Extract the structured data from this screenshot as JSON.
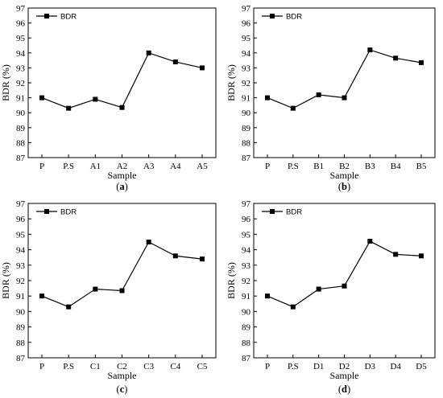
{
  "chart_data": [
    {
      "type": "line",
      "panel_label": "a",
      "categories": [
        "P",
        "P.S",
        "A1",
        "A2",
        "A3",
        "A4",
        "A5"
      ],
      "series": [
        {
          "name": "BDR",
          "values": [
            91.0,
            90.3,
            90.9,
            90.35,
            94.0,
            93.4,
            93.0
          ]
        }
      ],
      "xlabel": "Sample",
      "ylabel": "BDR (%)",
      "ylim": [
        87,
        97
      ],
      "yticks": [
        87,
        88,
        89,
        90,
        91,
        92,
        93,
        94,
        95,
        96,
        97
      ],
      "grid": false,
      "legend_position": "top-left"
    },
    {
      "type": "line",
      "panel_label": "b",
      "categories": [
        "P",
        "P.S",
        "B1",
        "B2",
        "B3",
        "B4",
        "B5"
      ],
      "series": [
        {
          "name": "BDR",
          "values": [
            91.0,
            90.3,
            91.2,
            91.0,
            94.2,
            93.65,
            93.35
          ]
        }
      ],
      "xlabel": "Sample",
      "ylabel": "BDR (%)",
      "ylim": [
        87,
        97
      ],
      "yticks": [
        87,
        88,
        89,
        90,
        91,
        92,
        93,
        94,
        95,
        96,
        97
      ],
      "grid": false,
      "legend_position": "top-left"
    },
    {
      "type": "line",
      "panel_label": "c",
      "categories": [
        "P",
        "P.S",
        "C1",
        "C2",
        "C3",
        "C4",
        "C5"
      ],
      "series": [
        {
          "name": "BDR",
          "values": [
            91.0,
            90.3,
            91.45,
            91.35,
            94.5,
            93.6,
            93.4
          ]
        }
      ],
      "xlabel": "Sample",
      "ylabel": "BDR (%)",
      "ylim": [
        87,
        97
      ],
      "yticks": [
        87,
        88,
        89,
        90,
        91,
        92,
        93,
        94,
        95,
        96,
        97
      ],
      "grid": false,
      "legend_position": "top-left"
    },
    {
      "type": "line",
      "panel_label": "d",
      "categories": [
        "P",
        "P.S",
        "D1",
        "D2",
        "D3",
        "D4",
        "D5"
      ],
      "series": [
        {
          "name": "BDR",
          "values": [
            91.0,
            90.3,
            91.45,
            91.65,
            94.55,
            93.7,
            93.6
          ]
        }
      ],
      "xlabel": "Sample",
      "ylabel": "BDR (%)",
      "ylim": [
        87,
        97
      ],
      "yticks": [
        87,
        88,
        89,
        90,
        91,
        92,
        93,
        94,
        95,
        96,
        97
      ],
      "grid": false,
      "legend_position": "top-left"
    }
  ],
  "colors": {
    "line": "#000000",
    "marker": "#000000",
    "axis": "#000000"
  }
}
